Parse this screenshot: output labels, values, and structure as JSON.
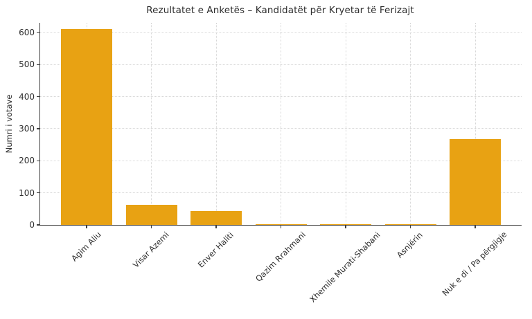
{
  "chart_data": {
    "type": "bar",
    "title": "Rezultatet e Anketës – Kandidatët për Kryetar të Ferizajt",
    "xlabel": "",
    "ylabel": "Numri i votave",
    "categories": [
      "Agim Aliu",
      "Visar Azemi",
      "Enver Haliti",
      "Qazim Rrahmani",
      "Xhemile Murati-Shabani",
      "Asnjërin",
      "Nuk e di / Pa përgjigje"
    ],
    "values": [
      610,
      62,
      43,
      3,
      3,
      1,
      268
    ],
    "ylim": [
      0,
      630
    ],
    "yticks": [
      0,
      100,
      200,
      300,
      400,
      500,
      600
    ],
    "x_tick_rotation": 45,
    "grid": true,
    "legend": "none",
    "bar_color": "#E8A213",
    "grid_color": "#D7D7D7",
    "axis_color": "#3F3F3F",
    "text_color": "#2E2E2E",
    "background": "#FFFFFF"
  }
}
